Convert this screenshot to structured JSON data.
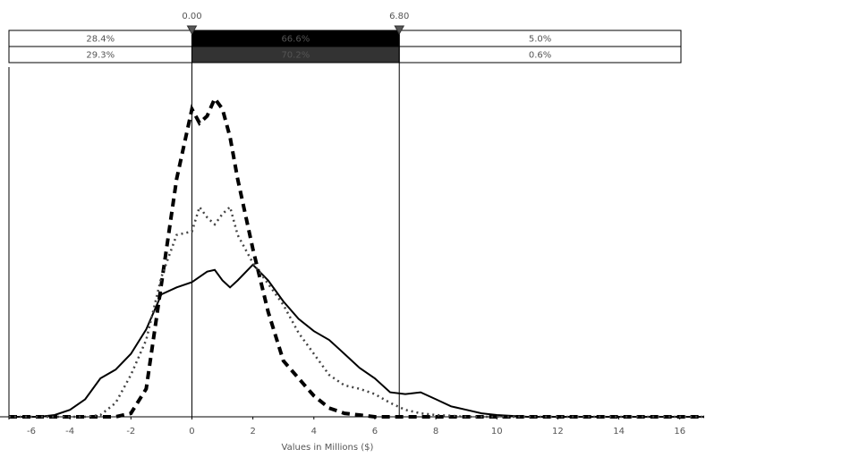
{
  "chart_data": {
    "type": "line",
    "x_label": "Values in Millions ($)",
    "x": [
      -6,
      -5,
      -4.5,
      -4,
      -3.5,
      -3,
      -2.5,
      -2,
      -1.5,
      -1,
      -0.5,
      0,
      0.25,
      0.5,
      0.75,
      1,
      1.25,
      1.5,
      2,
      2.5,
      3,
      3.5,
      4,
      4.5,
      5,
      5.5,
      6,
      6.5,
      7,
      7.5,
      8,
      8.5,
      9,
      9.5,
      10,
      11,
      12,
      13,
      14,
      15,
      16,
      16.8
    ],
    "series": [
      {
        "color": "#000000",
        "style": "solid",
        "values": [
          0,
          0,
          0.5,
          2,
          5,
          11,
          13.5,
          18,
          25,
          35,
          37,
          38.5,
          40,
          41.5,
          42,
          39,
          37,
          39,
          43.5,
          39,
          33,
          28,
          24.5,
          22,
          18,
          14,
          11,
          7,
          6.5,
          7,
          5,
          3,
          2,
          1,
          0.5,
          0,
          0,
          0,
          0,
          0,
          0,
          0
        ]
      },
      {
        "color": "#000000",
        "style": "dashed",
        "values": [
          0,
          0,
          0,
          0,
          0,
          0,
          0,
          1,
          8,
          38,
          68,
          88,
          84,
          86,
          91,
          88,
          80,
          68,
          48,
          30,
          16,
          11,
          6,
          2.5,
          1,
          0.5,
          0,
          0,
          0,
          0,
          0,
          0,
          0,
          0,
          0,
          0,
          0,
          0,
          0,
          0,
          0,
          0
        ]
      },
      {
        "color": "#444444",
        "style": "dotted",
        "values": [
          0,
          0,
          0,
          0,
          0,
          0.5,
          4,
          12,
          22,
          40,
          52,
          53,
          60,
          57,
          55,
          58,
          60,
          52,
          44,
          38,
          32,
          24,
          18,
          12,
          9,
          8,
          6.5,
          4,
          2,
          1,
          0.5,
          0.3,
          0,
          0,
          0,
          0,
          0,
          0,
          0,
          0,
          0,
          0
        ]
      }
    ],
    "xlim": [
      -6,
      16.8
    ],
    "xticks": [
      -6,
      -4,
      -2,
      0,
      2,
      4,
      6,
      8,
      10,
      12,
      14,
      16
    ],
    "ylim": [
      0,
      100
    ],
    "delimiters": [
      {
        "value": 0,
        "label": "0.00"
      },
      {
        "value": 6.8,
        "label": "6.80"
      }
    ],
    "band_rows": [
      {
        "cells": [
          "28.4%",
          "66.6%",
          "5.0%"
        ],
        "middle_color": "#000000"
      },
      {
        "cells": [
          "29.3%",
          "70.2%",
          "0.6%"
        ],
        "middle_color": "#333333"
      }
    ]
  }
}
